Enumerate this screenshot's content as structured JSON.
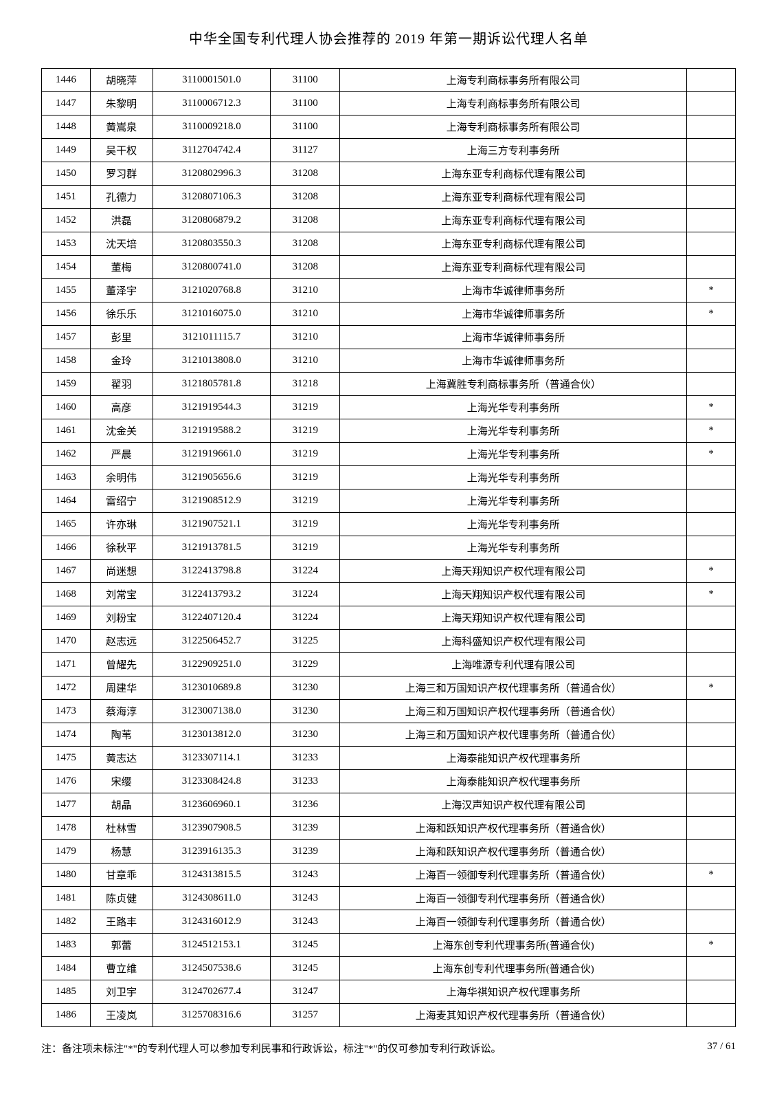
{
  "title": "中华全国专利代理人协会推荐的 2019 年第一期诉讼代理人名单",
  "rows": [
    {
      "seq": "1446",
      "name": "胡晓萍",
      "id": "3110001501.0",
      "code": "31100",
      "firm": "上海专利商标事务所有限公司",
      "star": ""
    },
    {
      "seq": "1447",
      "name": "朱黎明",
      "id": "3110006712.3",
      "code": "31100",
      "firm": "上海专利商标事务所有限公司",
      "star": ""
    },
    {
      "seq": "1448",
      "name": "黄嵩泉",
      "id": "3110009218.0",
      "code": "31100",
      "firm": "上海专利商标事务所有限公司",
      "star": ""
    },
    {
      "seq": "1449",
      "name": "吴干权",
      "id": "3112704742.4",
      "code": "31127",
      "firm": "上海三方专利事务所",
      "star": ""
    },
    {
      "seq": "1450",
      "name": "罗习群",
      "id": "3120802996.3",
      "code": "31208",
      "firm": "上海东亚专利商标代理有限公司",
      "star": ""
    },
    {
      "seq": "1451",
      "name": "孔德力",
      "id": "3120807106.3",
      "code": "31208",
      "firm": "上海东亚专利商标代理有限公司",
      "star": ""
    },
    {
      "seq": "1452",
      "name": "洪磊",
      "id": "3120806879.2",
      "code": "31208",
      "firm": "上海东亚专利商标代理有限公司",
      "star": ""
    },
    {
      "seq": "1453",
      "name": "沈天培",
      "id": "3120803550.3",
      "code": "31208",
      "firm": "上海东亚专利商标代理有限公司",
      "star": ""
    },
    {
      "seq": "1454",
      "name": "董梅",
      "id": "3120800741.0",
      "code": "31208",
      "firm": "上海东亚专利商标代理有限公司",
      "star": ""
    },
    {
      "seq": "1455",
      "name": "董泽宇",
      "id": "3121020768.8",
      "code": "31210",
      "firm": "上海市华诚律师事务所",
      "star": "*"
    },
    {
      "seq": "1456",
      "name": "徐乐乐",
      "id": "3121016075.0",
      "code": "31210",
      "firm": "上海市华诚律师事务所",
      "star": "*"
    },
    {
      "seq": "1457",
      "name": "彭里",
      "id": "3121011115.7",
      "code": "31210",
      "firm": "上海市华诚律师事务所",
      "star": ""
    },
    {
      "seq": "1458",
      "name": "金玲",
      "id": "3121013808.0",
      "code": "31210",
      "firm": "上海市华诚律师事务所",
      "star": ""
    },
    {
      "seq": "1459",
      "name": "翟羽",
      "id": "3121805781.8",
      "code": "31218",
      "firm": "上海冀胜专利商标事务所（普通合伙）",
      "star": ""
    },
    {
      "seq": "1460",
      "name": "高彦",
      "id": "3121919544.3",
      "code": "31219",
      "firm": "上海光华专利事务所",
      "star": "*"
    },
    {
      "seq": "1461",
      "name": "沈金关",
      "id": "3121919588.2",
      "code": "31219",
      "firm": "上海光华专利事务所",
      "star": "*"
    },
    {
      "seq": "1462",
      "name": "严晨",
      "id": "3121919661.0",
      "code": "31219",
      "firm": "上海光华专利事务所",
      "star": "*"
    },
    {
      "seq": "1463",
      "name": "余明伟",
      "id": "3121905656.6",
      "code": "31219",
      "firm": "上海光华专利事务所",
      "star": ""
    },
    {
      "seq": "1464",
      "name": "雷绍宁",
      "id": "3121908512.9",
      "code": "31219",
      "firm": "上海光华专利事务所",
      "star": ""
    },
    {
      "seq": "1465",
      "name": "许亦琳",
      "id": "3121907521.1",
      "code": "31219",
      "firm": "上海光华专利事务所",
      "star": ""
    },
    {
      "seq": "1466",
      "name": "徐秋平",
      "id": "3121913781.5",
      "code": "31219",
      "firm": "上海光华专利事务所",
      "star": ""
    },
    {
      "seq": "1467",
      "name": "尚迷想",
      "id": "3122413798.8",
      "code": "31224",
      "firm": "上海天翔知识产权代理有限公司",
      "star": "*"
    },
    {
      "seq": "1468",
      "name": "刘常宝",
      "id": "3122413793.2",
      "code": "31224",
      "firm": "上海天翔知识产权代理有限公司",
      "star": "*"
    },
    {
      "seq": "1469",
      "name": "刘粉宝",
      "id": "3122407120.4",
      "code": "31224",
      "firm": "上海天翔知识产权代理有限公司",
      "star": ""
    },
    {
      "seq": "1470",
      "name": "赵志远",
      "id": "3122506452.7",
      "code": "31225",
      "firm": "上海科盛知识产权代理有限公司",
      "star": ""
    },
    {
      "seq": "1471",
      "name": "曾耀先",
      "id": "3122909251.0",
      "code": "31229",
      "firm": "上海唯源专利代理有限公司",
      "star": ""
    },
    {
      "seq": "1472",
      "name": "周建华",
      "id": "3123010689.8",
      "code": "31230",
      "firm": "上海三和万国知识产权代理事务所（普通合伙）",
      "star": "*"
    },
    {
      "seq": "1473",
      "name": "蔡海淳",
      "id": "3123007138.0",
      "code": "31230",
      "firm": "上海三和万国知识产权代理事务所（普通合伙）",
      "star": ""
    },
    {
      "seq": "1474",
      "name": "陶苇",
      "id": "3123013812.0",
      "code": "31230",
      "firm": "上海三和万国知识产权代理事务所（普通合伙）",
      "star": ""
    },
    {
      "seq": "1475",
      "name": "黄志达",
      "id": "3123307114.1",
      "code": "31233",
      "firm": "上海泰能知识产权代理事务所",
      "star": ""
    },
    {
      "seq": "1476",
      "name": "宋缨",
      "id": "3123308424.8",
      "code": "31233",
      "firm": "上海泰能知识产权代理事务所",
      "star": ""
    },
    {
      "seq": "1477",
      "name": "胡晶",
      "id": "3123606960.1",
      "code": "31236",
      "firm": "上海汉声知识产权代理有限公司",
      "star": ""
    },
    {
      "seq": "1478",
      "name": "杜林雪",
      "id": "3123907908.5",
      "code": "31239",
      "firm": "上海和跃知识产权代理事务所（普通合伙）",
      "star": ""
    },
    {
      "seq": "1479",
      "name": "杨慧",
      "id": "3123916135.3",
      "code": "31239",
      "firm": "上海和跃知识产权代理事务所（普通合伙）",
      "star": ""
    },
    {
      "seq": "1480",
      "name": "甘章乖",
      "id": "3124313815.5",
      "code": "31243",
      "firm": "上海百一领御专利代理事务所（普通合伙）",
      "star": "*"
    },
    {
      "seq": "1481",
      "name": "陈贞健",
      "id": "3124308611.0",
      "code": "31243",
      "firm": "上海百一领御专利代理事务所（普通合伙）",
      "star": ""
    },
    {
      "seq": "1482",
      "name": "王路丰",
      "id": "3124316012.9",
      "code": "31243",
      "firm": "上海百一领御专利代理事务所（普通合伙）",
      "star": ""
    },
    {
      "seq": "1483",
      "name": "郭蕾",
      "id": "3124512153.1",
      "code": "31245",
      "firm": "上海东创专利代理事务所(普通合伙)",
      "star": "*"
    },
    {
      "seq": "1484",
      "name": "曹立维",
      "id": "3124507538.6",
      "code": "31245",
      "firm": "上海东创专利代理事务所(普通合伙)",
      "star": ""
    },
    {
      "seq": "1485",
      "name": "刘卫宇",
      "id": "3124702677.4",
      "code": "31247",
      "firm": "上海华祺知识产权代理事务所",
      "star": ""
    },
    {
      "seq": "1486",
      "name": "王凌岚",
      "id": "3125708316.6",
      "code": "31257",
      "firm": "上海麦其知识产权代理事务所（普通合伙）",
      "star": ""
    }
  ],
  "footnote": "注：备注项未标注\"*\"的专利代理人可以参加专利民事和行政诉讼，标注\"*\"的仅可参加专利行政诉讼。",
  "page_num": "37 / 61"
}
